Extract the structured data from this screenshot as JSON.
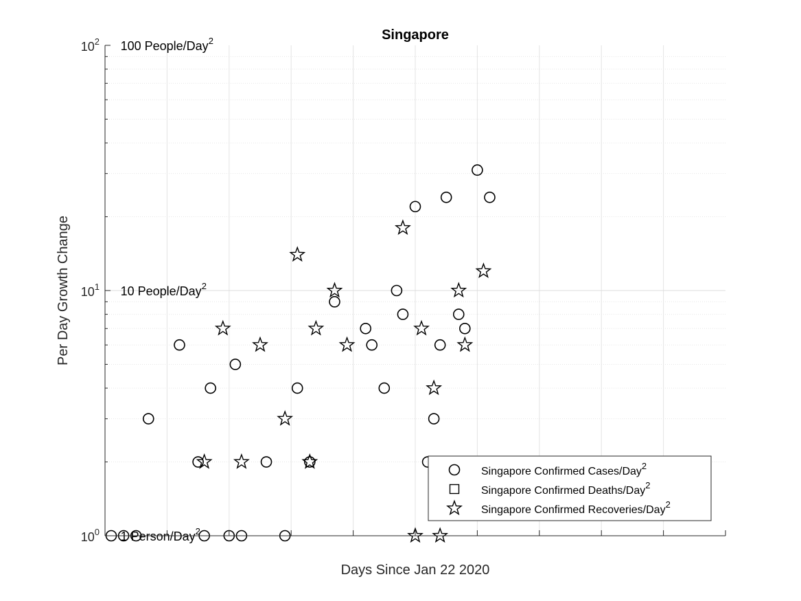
{
  "chart_data": {
    "type": "scatter",
    "title": "Singapore",
    "xlabel": "Days Since Jan 22 2020",
    "ylabel": "Per Day Growth Change",
    "xlim": [
      0,
      100
    ],
    "ylim": [
      1,
      100
    ],
    "yscale": "log",
    "grid": true,
    "x_ticks": [
      "0",
      "10",
      "20",
      "30",
      "40",
      "50",
      "60",
      "70",
      "80",
      "90",
      "100"
    ],
    "y_ticks": [
      {
        "value": 1,
        "base": "10",
        "exp": "0"
      },
      {
        "value": 10,
        "base": "10",
        "exp": "1"
      },
      {
        "value": 100,
        "base": "10",
        "exp": "2"
      }
    ],
    "annotations": [
      {
        "y": 100,
        "text": "100 People/Day",
        "sup": "2"
      },
      {
        "y": 10,
        "text": "10 People/Day",
        "sup": "2"
      },
      {
        "y": 1,
        "text": "1 Person/Day",
        "sup": "2"
      }
    ],
    "legend_position": "bottom-right",
    "series": [
      {
        "name": "Singapore Confirmed Cases/Day",
        "name_sup": "2",
        "marker": "circle",
        "points": [
          [
            1,
            1
          ],
          [
            3,
            1
          ],
          [
            5,
            1
          ],
          [
            7,
            3
          ],
          [
            12,
            6
          ],
          [
            15,
            2
          ],
          [
            16,
            1
          ],
          [
            17,
            4
          ],
          [
            20,
            1
          ],
          [
            21,
            5
          ],
          [
            22,
            1
          ],
          [
            26,
            2
          ],
          [
            29,
            1
          ],
          [
            31,
            4
          ],
          [
            33,
            2
          ],
          [
            37,
            9
          ],
          [
            42,
            7
          ],
          [
            43,
            6
          ],
          [
            45,
            4
          ],
          [
            47,
            10
          ],
          [
            48,
            8
          ],
          [
            50,
            22
          ],
          [
            52,
            2
          ],
          [
            53,
            3
          ],
          [
            54,
            6
          ],
          [
            55,
            24
          ],
          [
            57,
            8
          ],
          [
            58,
            7
          ],
          [
            60,
            31
          ],
          [
            62,
            24
          ]
        ]
      },
      {
        "name": "Singapore Confirmed Deaths/Day",
        "name_sup": "2",
        "marker": "square",
        "points": []
      },
      {
        "name": "Singapore Confirmed Recoveries/Day",
        "name_sup": "2",
        "marker": "star",
        "points": [
          [
            16,
            2
          ],
          [
            19,
            7
          ],
          [
            22,
            2
          ],
          [
            25,
            6
          ],
          [
            29,
            3
          ],
          [
            31,
            14
          ],
          [
            33,
            2
          ],
          [
            34,
            7
          ],
          [
            37,
            10
          ],
          [
            39,
            6
          ],
          [
            48,
            18
          ],
          [
            50,
            1
          ],
          [
            51,
            7
          ],
          [
            53,
            4
          ],
          [
            54,
            1
          ],
          [
            57,
            10
          ],
          [
            58,
            6
          ],
          [
            61,
            12
          ]
        ]
      }
    ]
  }
}
